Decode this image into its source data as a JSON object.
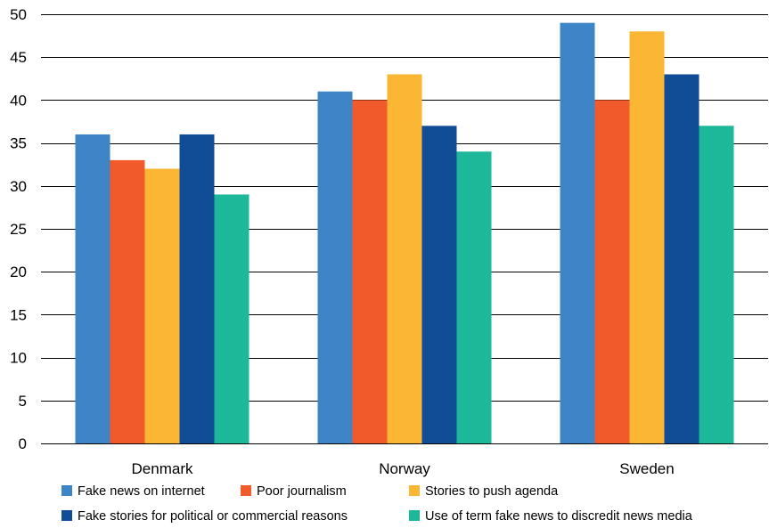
{
  "chart_data": {
    "type": "bar",
    "categories": [
      "Denmark",
      "Norway",
      "Sweden"
    ],
    "series": [
      {
        "name": "Fake news on internet",
        "color": "#3d85c6",
        "values": [
          36,
          41,
          49
        ]
      },
      {
        "name": "Poor journalism",
        "color": "#f15a2b",
        "values": [
          33,
          40,
          40
        ]
      },
      {
        "name": "Stories to push agenda",
        "color": "#fbb634",
        "values": [
          32,
          43,
          48
        ]
      },
      {
        "name": "Fake stories for political or commercial reasons",
        "color": "#114c96",
        "values": [
          36,
          37,
          43
        ]
      },
      {
        "name": "Use of term fake news to discredit news media",
        "color": "#1db89a",
        "values": [
          29,
          34,
          37
        ]
      }
    ],
    "ylim": [
      0,
      50
    ],
    "yticks": [
      "0",
      "5",
      "10",
      "15",
      "20",
      "25",
      "30",
      "35",
      "40",
      "45",
      "50"
    ],
    "grid": true,
    "legend_position": "bottom"
  }
}
